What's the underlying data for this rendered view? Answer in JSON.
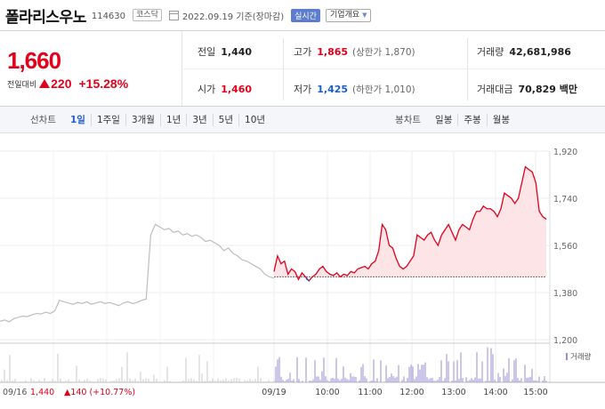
{
  "header": {
    "stock_name": "폴라리스우노",
    "stock_code": "114630",
    "market": "코스닥",
    "date": "2022.09.19 기준(장마감)",
    "live_badge": "실시간",
    "company_button": "기업개요"
  },
  "price": {
    "current": "1,660",
    "change_label": "전일대비",
    "change_amount": "220",
    "change_pct": "+15.28%"
  },
  "stats": {
    "prev_close_label": "전일",
    "prev_close": "1,440",
    "high_label": "고가",
    "high": "1,865",
    "upper_limit": "(상한가 1,870)",
    "volume_label": "거래량",
    "volume": "42,681,986",
    "open_label": "시가",
    "open": "1,460",
    "low_label": "저가",
    "low": "1,425",
    "lower_limit": "(하한가 1,010)",
    "trade_value_label": "거래대금",
    "trade_value": "70,829 백만"
  },
  "tabs": {
    "line_label": "선차트",
    "line_items": [
      "1일",
      "1주일",
      "3개월",
      "1년",
      "3년",
      "5년",
      "10년"
    ],
    "active": "1일",
    "candle_label": "봉차트",
    "candle_items": [
      "일봉",
      "주봉",
      "월봉"
    ]
  },
  "colors": {
    "up": "#e4001b",
    "down": "#1a5fc4",
    "fill": "#fde4e6",
    "prev_line": "#bdbdbd",
    "volume_bar": "#9a8fd6"
  },
  "chart_data": {
    "type": "line",
    "prev_day": {
      "date_label": "09/16",
      "close_label": "1,440",
      "change_label": "▲140 (+10.77%)"
    },
    "y_ticks": [
      "1,920",
      "1,740",
      "1,560",
      "1,380",
      "1,200"
    ],
    "ylim": [
      1200,
      1920
    ],
    "x_labels": [
      "09/19",
      "10:00",
      "11:00",
      "12:00",
      "13:00",
      "14:00",
      "15:00"
    ],
    "volume_legend": "거래량",
    "baseline": 1440,
    "prev_series": [
      1270,
      1275,
      1268,
      1280,
      1285,
      1290,
      1288,
      1295,
      1300,
      1298,
      1305,
      1300,
      1310,
      1350,
      1345,
      1340,
      1335,
      1342,
      1338,
      1345,
      1335,
      1340,
      1345,
      1338,
      1342,
      1336,
      1330,
      1340,
      1345,
      1338,
      1342,
      1350,
      1355,
      1600,
      1640,
      1630,
      1620,
      1625,
      1610,
      1615,
      1600,
      1605,
      1595,
      1600,
      1590,
      1575,
      1580,
      1570,
      1560,
      1540,
      1550,
      1530,
      1520,
      1505,
      1500,
      1490,
      1480,
      1470,
      1450,
      1440,
      1435
    ],
    "today_series": [
      1460,
      1520,
      1490,
      1500,
      1450,
      1470,
      1460,
      1430,
      1455,
      1440,
      1425,
      1440,
      1450,
      1470,
      1480,
      1460,
      1450,
      1445,
      1455,
      1440,
      1450,
      1445,
      1460,
      1455,
      1470,
      1475,
      1480,
      1470,
      1490,
      1500,
      1540,
      1640,
      1620,
      1560,
      1550,
      1510,
      1480,
      1470,
      1480,
      1500,
      1520,
      1600,
      1590,
      1580,
      1600,
      1610,
      1580,
      1560,
      1600,
      1620,
      1640,
      1610,
      1580,
      1620,
      1640,
      1630,
      1620,
      1660,
      1690,
      1690,
      1710,
      1700,
      1700,
      1690,
      1670,
      1700,
      1760,
      1750,
      1740,
      1720,
      1740,
      1800,
      1860,
      1850,
      1840,
      1800,
      1690,
      1670,
      1660
    ]
  }
}
